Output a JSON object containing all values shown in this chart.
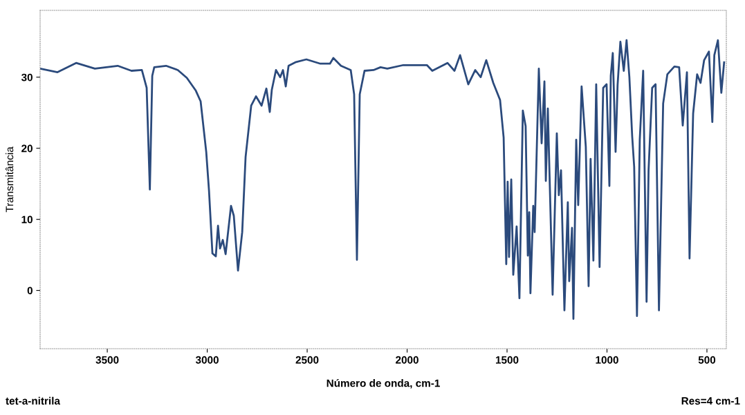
{
  "chart_data": {
    "type": "line",
    "xlabel": "Número de onda, cm-1",
    "ylabel": "Transmitância",
    "annotations": [
      "tet-a-nitrila",
      "Res=4 cm-1"
    ],
    "xlim": [
      3836,
      403
    ],
    "ylim": [
      -8.2,
      39.4
    ],
    "xticks": [
      3500,
      3000,
      2500,
      2000,
      1500,
      1000,
      500
    ],
    "yticks": [
      0,
      10,
      20,
      30
    ],
    "grid": false,
    "marker": "none",
    "line_style": "solid",
    "series": [
      {
        "color": "#2b4a7c",
        "x": [
          3836,
          3749,
          3656,
          3562,
          3448,
          3379,
          3327,
          3303,
          3287,
          3275,
          3265,
          3206,
          3147,
          3102,
          3057,
          3033,
          3005,
          2991,
          2974,
          2957,
          2946,
          2936,
          2922,
          2908,
          2881,
          2867,
          2846,
          2825,
          2808,
          2780,
          2756,
          2728,
          2704,
          2687,
          2677,
          2656,
          2635,
          2621,
          2607,
          2593,
          2559,
          2504,
          2434,
          2386,
          2369,
          2331,
          2282,
          2265,
          2251,
          2237,
          2213,
          2168,
          2133,
          2099,
          2019,
          1901,
          1874,
          1798,
          1763,
          1735,
          1694,
          1659,
          1632,
          1604,
          1569,
          1535,
          1517,
          1504,
          1497,
          1490,
          1479,
          1469,
          1452,
          1438,
          1421,
          1407,
          1396,
          1389,
          1383,
          1369,
          1362,
          1341,
          1327,
          1313,
          1306,
          1296,
          1272,
          1251,
          1241,
          1230,
          1213,
          1196,
          1189,
          1175,
          1168,
          1154,
          1144,
          1127,
          1106,
          1092,
          1082,
          1068,
          1054,
          1037,
          1019,
          1002,
          988,
          981,
          971,
          957,
          947,
          933,
          916,
          902,
          888,
          874,
          864,
          850,
          836,
          819,
          802,
          792,
          774,
          757,
          740,
          719,
          698,
          663,
          639,
          621,
          600,
          587,
          569,
          549,
          532,
          514,
          490,
          473,
          463,
          445,
          428,
          414
        ],
        "values": [
          31.2,
          30.7,
          32.0,
          31.2,
          31.6,
          30.9,
          31.0,
          28.5,
          14.2,
          30.2,
          31.4,
          31.6,
          31.0,
          29.9,
          28.1,
          26.6,
          19.5,
          14.0,
          5.2,
          4.8,
          9.1,
          5.9,
          7.1,
          5.1,
          11.9,
          10.5,
          2.8,
          8.2,
          18.8,
          26.0,
          27.3,
          26.0,
          28.4,
          25.1,
          28.2,
          31.0,
          30.0,
          31.0,
          28.7,
          31.6,
          32.1,
          32.5,
          31.9,
          31.9,
          32.7,
          31.6,
          31.0,
          27.6,
          4.3,
          27.6,
          30.9,
          31.0,
          31.4,
          31.2,
          31.7,
          31.7,
          30.9,
          32.0,
          30.9,
          33.1,
          29.0,
          31.0,
          30.0,
          32.4,
          29.2,
          26.8,
          21.5,
          3.7,
          15.3,
          4.7,
          15.6,
          2.2,
          9.0,
          -1.1,
          25.3,
          23.1,
          4.9,
          11.0,
          -0.4,
          11.9,
          8.2,
          31.2,
          20.7,
          29.4,
          15.4,
          25.6,
          -0.6,
          22.1,
          13.4,
          16.9,
          -2.8,
          12.4,
          1.3,
          8.8,
          -4.0,
          21.2,
          12.0,
          28.7,
          20.2,
          0.6,
          18.5,
          4.2,
          29.0,
          3.3,
          28.5,
          29.0,
          14.7,
          30.2,
          33.4,
          19.5,
          28.9,
          35.0,
          30.9,
          35.2,
          30.0,
          21.7,
          17.4,
          -3.6,
          21.2,
          30.9,
          -1.6,
          16.9,
          28.5,
          29.0,
          -2.8,
          26.3,
          30.4,
          31.5,
          31.4,
          23.2,
          30.7,
          4.5,
          24.9,
          30.4,
          29.2,
          32.4,
          33.6,
          23.7,
          33.1,
          35.2,
          27.8,
          32.1
        ]
      }
    ]
  }
}
